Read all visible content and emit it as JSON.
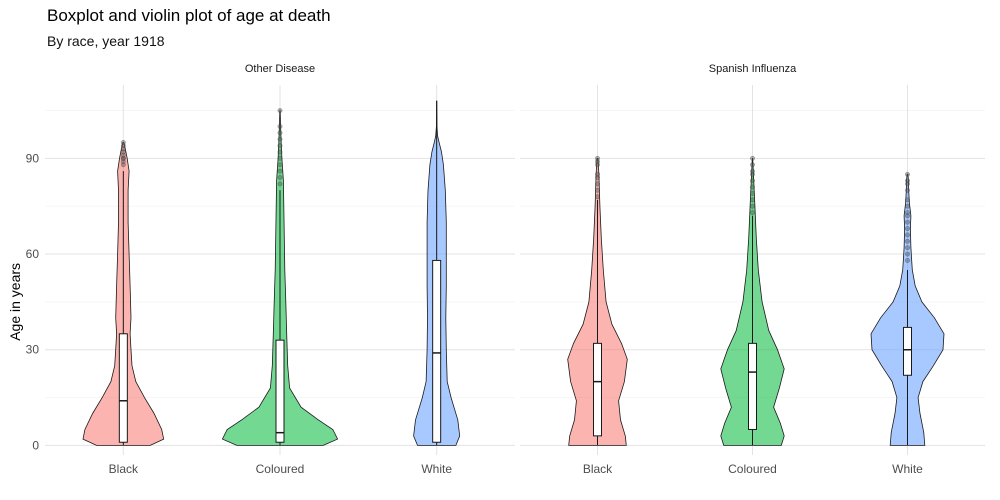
{
  "chart_data": {
    "type": "violin",
    "title": "Boxplot and violin plot of age at death",
    "subtitle": "By race, year 1918",
    "ylabel": "Age in years",
    "ylim": [
      -3,
      113
    ],
    "y_ticks": [
      0,
      30,
      60,
      90
    ],
    "grid": true,
    "categories": [
      "Black",
      "Coloured",
      "White"
    ],
    "colors": {
      "Black": "#F8766D",
      "Coloured": "#00BA38",
      "White": "#619CFF"
    },
    "panels": [
      {
        "title": "Other Disease",
        "groups": [
          {
            "category": "Black",
            "min": 0,
            "max": 95,
            "box": {
              "whisker_low": 0,
              "q1": 1,
              "median": 14,
              "q3": 35,
              "whisker_high": 86
            },
            "density": [
              [
                0,
                0.28
              ],
              [
                2,
                0.42
              ],
              [
                5,
                0.4
              ],
              [
                10,
                0.32
              ],
              [
                15,
                0.22
              ],
              [
                20,
                0.13
              ],
              [
                25,
                0.09
              ],
              [
                30,
                0.08
              ],
              [
                35,
                0.07
              ],
              [
                40,
                0.08
              ],
              [
                50,
                0.07
              ],
              [
                60,
                0.06
              ],
              [
                70,
                0.05
              ],
              [
                80,
                0.05
              ],
              [
                86,
                0.06
              ],
              [
                90,
                0.04
              ],
              [
                93,
                0.02
              ],
              [
                95,
                0.005
              ]
            ],
            "outliers": [
              88,
              89,
              90,
              90,
              91,
              92,
              93,
              94,
              95
            ]
          },
          {
            "category": "Coloured",
            "min": 0,
            "max": 105,
            "box": {
              "whisker_low": 0,
              "q1": 1,
              "median": 4,
              "q3": 33,
              "whisker_high": 80
            },
            "density": [
              [
                0,
                0.45
              ],
              [
                2,
                0.6
              ],
              [
                5,
                0.55
              ],
              [
                8,
                0.4
              ],
              [
                12,
                0.22
              ],
              [
                18,
                0.1
              ],
              [
                25,
                0.08
              ],
              [
                35,
                0.07
              ],
              [
                45,
                0.06
              ],
              [
                55,
                0.05
              ],
              [
                65,
                0.045
              ],
              [
                75,
                0.04
              ],
              [
                83,
                0.035
              ],
              [
                90,
                0.02
              ],
              [
                95,
                0.012
              ],
              [
                100,
                0.006
              ],
              [
                105,
                0.002
              ]
            ],
            "outliers": [
              82,
              84,
              86,
              88,
              90,
              92,
              94,
              96,
              98,
              100,
              105
            ]
          },
          {
            "category": "White",
            "min": 0,
            "max": 108,
            "box": {
              "whisker_low": 0,
              "q1": 1,
              "median": 29,
              "q3": 58,
              "whisker_high": 108
            },
            "density": [
              [
                0,
                0.2
              ],
              [
                3,
                0.24
              ],
              [
                8,
                0.22
              ],
              [
                15,
                0.15
              ],
              [
                20,
                0.11
              ],
              [
                30,
                0.1
              ],
              [
                40,
                0.095
              ],
              [
                50,
                0.1
              ],
              [
                60,
                0.1
              ],
              [
                70,
                0.1
              ],
              [
                80,
                0.09
              ],
              [
                88,
                0.07
              ],
              [
                92,
                0.05
              ],
              [
                95,
                0.025
              ],
              [
                97,
                0.01
              ],
              [
                100,
                0.003
              ],
              [
                108,
                0.001
              ]
            ],
            "outliers": []
          }
        ]
      },
      {
        "title": "Spanish Influenza",
        "groups": [
          {
            "category": "Black",
            "min": 0,
            "max": 90,
            "box": {
              "whisker_low": 0,
              "q1": 3,
              "median": 20,
              "q3": 32,
              "whisker_high": 77
            },
            "density": [
              [
                0,
                0.3
              ],
              [
                3,
                0.29
              ],
              [
                8,
                0.24
              ],
              [
                14,
                0.22
              ],
              [
                20,
                0.28
              ],
              [
                27,
                0.31
              ],
              [
                32,
                0.25
              ],
              [
                38,
                0.15
              ],
              [
                45,
                0.09
              ],
              [
                55,
                0.06
              ],
              [
                65,
                0.04
              ],
              [
                75,
                0.025
              ],
              [
                85,
                0.015
              ],
              [
                90,
                0.005
              ]
            ],
            "outliers": [
              78,
              80,
              82,
              84,
              85,
              88,
              89,
              90
            ]
          },
          {
            "category": "Coloured",
            "min": 0,
            "max": 90,
            "box": {
              "whisker_low": 0,
              "q1": 5,
              "median": 23,
              "q3": 32,
              "whisker_high": 72
            },
            "density": [
              [
                0,
                0.3
              ],
              [
                3,
                0.33
              ],
              [
                7,
                0.29
              ],
              [
                12,
                0.22
              ],
              [
                18,
                0.28
              ],
              [
                24,
                0.33
              ],
              [
                30,
                0.26
              ],
              [
                36,
                0.17
              ],
              [
                45,
                0.1
              ],
              [
                55,
                0.06
              ],
              [
                65,
                0.04
              ],
              [
                75,
                0.025
              ],
              [
                82,
                0.015
              ],
              [
                88,
                0.005
              ],
              [
                90,
                0.002
              ]
            ],
            "outliers": [
              73,
              75,
              77,
              79,
              81,
              83,
              85,
              86,
              88,
              90
            ]
          },
          {
            "category": "White",
            "min": 0,
            "max": 85,
            "box": {
              "whisker_low": 0,
              "q1": 22,
              "median": 30,
              "q3": 37,
              "whisker_high": 55
            },
            "density": [
              [
                0,
                0.18
              ],
              [
                4,
                0.17
              ],
              [
                10,
                0.13
              ],
              [
                15,
                0.11
              ],
              [
                20,
                0.16
              ],
              [
                25,
                0.27
              ],
              [
                30,
                0.37
              ],
              [
                35,
                0.38
              ],
              [
                40,
                0.28
              ],
              [
                45,
                0.15
              ],
              [
                50,
                0.08
              ],
              [
                55,
                0.05
              ],
              [
                62,
                0.035
              ],
              [
                68,
                0.03
              ],
              [
                72,
                0.035
              ],
              [
                76,
                0.02
              ],
              [
                80,
                0.012
              ],
              [
                83,
                0.01
              ],
              [
                85,
                0.004
              ]
            ],
            "outliers": [
              58,
              60,
              62,
              64,
              66,
              68,
              70,
              72,
              73,
              75,
              77,
              80,
              82,
              83,
              85
            ]
          }
        ]
      }
    ]
  }
}
